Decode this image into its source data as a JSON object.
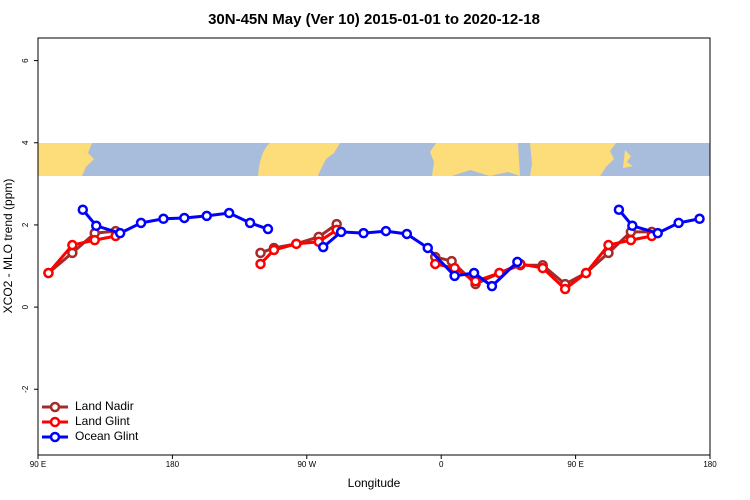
{
  "chart_data": {
    "type": "line",
    "title": "30N-45N May (Ver 10)   2015-01-01 to 2020-12-18",
    "x_label": "Longitude",
    "y_label": "XCO2 - MLO trend (ppm)",
    "xlim": [
      90,
      540
    ],
    "ylim": [
      -3.6,
      6.55
    ],
    "xticks": [
      {
        "value": 90,
        "label": "90 E"
      },
      180,
      {
        "value": 270,
        "label": "90 W"
      },
      {
        "value": 360,
        "label": "0"
      },
      {
        "value": 450,
        "label": "90 E"
      },
      {
        "value": 540,
        "label": "180"
      }
    ],
    "yticks": [
      -2,
      0,
      2,
      4,
      6
    ],
    "legend": "bottom-left",
    "series": [
      {
        "name": "Land Nadir",
        "color": "#a52a2a",
        "x": [
          97,
          113,
          128,
          142,
          null,
          239,
          248,
          263,
          278,
          290,
          null,
          356,
          367,
          383,
          399,
          413,
          428,
          443,
          457,
          472,
          487,
          501
        ],
        "values": [
          0.83,
          1.32,
          1.8,
          1.85,
          null,
          1.32,
          1.44,
          1.54,
          1.71,
          2.02,
          null,
          1.22,
          1.12,
          0.56,
          0.83,
          1.02,
          1.02,
          0.56,
          0.83,
          1.32,
          1.83,
          1.83
        ]
      },
      {
        "name": "Land Glint",
        "color": "#ff0000",
        "x": [
          97,
          113,
          128,
          142,
          null,
          239,
          248,
          263,
          278,
          290,
          null,
          356,
          369,
          383,
          399,
          413,
          428,
          443,
          457,
          472,
          487,
          501
        ],
        "values": [
          0.83,
          1.51,
          1.63,
          1.73,
          null,
          1.05,
          1.39,
          1.54,
          1.59,
          1.88,
          null,
          1.05,
          0.95,
          0.63,
          0.83,
          1.05,
          0.95,
          0.44,
          0.83,
          1.51,
          1.63,
          1.73
        ]
      },
      {
        "name": "Ocean Glint",
        "color": "#0000ff",
        "x": [
          120,
          129,
          145,
          159,
          174,
          188,
          203,
          218,
          232,
          244,
          null,
          281,
          293,
          308,
          323,
          337,
          351,
          369,
          382,
          394,
          411,
          null,
          479,
          488,
          505,
          519,
          533
        ],
        "values": [
          2.37,
          1.98,
          1.8,
          2.05,
          2.15,
          2.17,
          2.22,
          2.29,
          2.05,
          1.9,
          null,
          1.46,
          1.83,
          1.8,
          1.85,
          1.78,
          1.44,
          0.76,
          0.83,
          0.51,
          1.1,
          null,
          2.37,
          1.98,
          1.8,
          2.05,
          2.15
        ]
      }
    ]
  }
}
